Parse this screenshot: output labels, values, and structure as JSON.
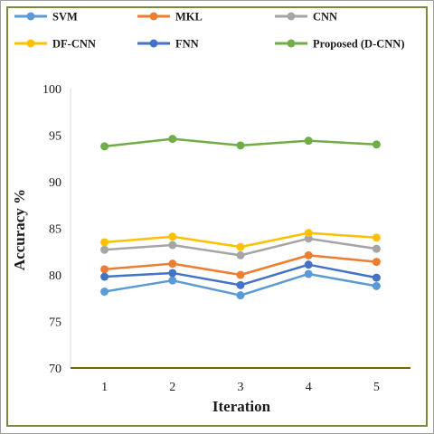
{
  "chart_data": {
    "type": "line",
    "title": "",
    "xlabel": "Iteration",
    "ylabel": "Accuracy %",
    "categories": [
      "1",
      "2",
      "3",
      "4",
      "5"
    ],
    "ylim": [
      70,
      100
    ],
    "yticks": [
      "70",
      "75",
      "80",
      "85",
      "90",
      "95",
      "100"
    ],
    "grid": false,
    "legend_position": "top",
    "series": [
      {
        "name": "SVM",
        "color": "#5b9bd5",
        "values": [
          78.2,
          79.4,
          77.8,
          80.1,
          78.8
        ]
      },
      {
        "name": "MKL",
        "color": "#ed7d31",
        "values": [
          80.6,
          81.2,
          80.0,
          82.1,
          81.4
        ]
      },
      {
        "name": "CNN",
        "color": "#a5a5a5",
        "values": [
          82.7,
          83.2,
          82.1,
          83.9,
          82.8
        ]
      },
      {
        "name": "DF-CNN",
        "color": "#ffc000",
        "values": [
          83.5,
          84.1,
          83.0,
          84.5,
          84.0
        ]
      },
      {
        "name": "FNN",
        "color": "#4472c4",
        "values": [
          79.8,
          80.2,
          78.9,
          81.1,
          79.7
        ]
      },
      {
        "name": "Proposed (D-CNN)",
        "color": "#70ad47",
        "values": [
          93.8,
          94.6,
          93.9,
          94.4,
          94.0
        ]
      }
    ]
  }
}
